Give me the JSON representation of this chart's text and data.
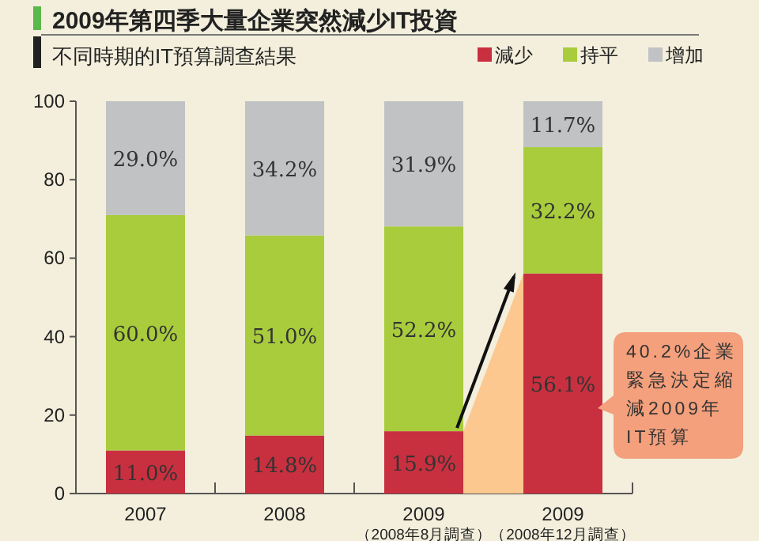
{
  "chart_data": {
    "type": "bar",
    "stacked": true,
    "title": "2009年第四季大量企業突然減少IT投資",
    "subtitle": "不同時期的IT預算調查結果",
    "categories": [
      "2007",
      "2008",
      "2009\n（2008年8月調查）",
      "2009\n（2008年12月調查）"
    ],
    "series": [
      {
        "name": "減少",
        "color": "#c8303f",
        "values": [
          11.0,
          14.8,
          15.9,
          56.1
        ],
        "value_labels": [
          "11.0%",
          "14.8%",
          "15.9%",
          "56.1%"
        ]
      },
      {
        "name": "持平",
        "color": "#a8cc3c",
        "values": [
          60.0,
          51.0,
          52.2,
          32.2
        ],
        "value_labels": [
          "60.0%",
          "51.0%",
          "52.2%",
          "32.2%"
        ]
      },
      {
        "name": "增加",
        "color": "#c0c2c4",
        "values": [
          29.0,
          34.2,
          31.9,
          11.7
        ],
        "value_labels": [
          "29.0%",
          "34.2%",
          "31.9%",
          "11.7%"
        ]
      }
    ],
    "ylim": [
      0,
      100
    ],
    "yticks": [
      0,
      20,
      40,
      60,
      80,
      100
    ],
    "legend": "top right",
    "annotations": [
      "40.2%企業緊急決定縮減2009年IT預算"
    ]
  }
}
